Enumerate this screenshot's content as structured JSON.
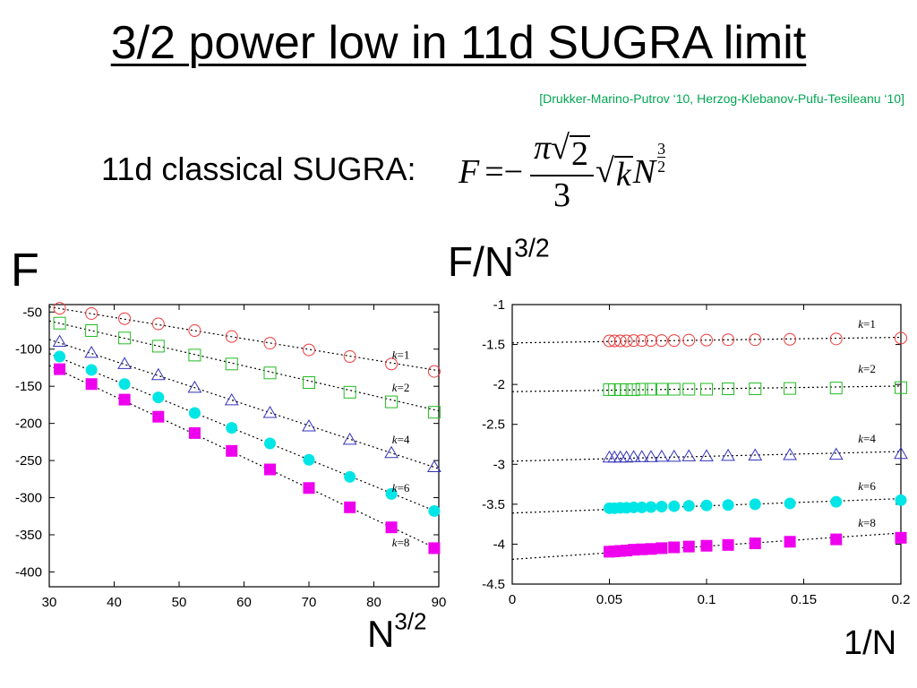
{
  "title": "3/2 power low in 11d SUGRA limit",
  "citation": "[Drukker-Marino-Putrov ‘10, Herzog-Klebanov-Pufu-Tesileanu ‘10]",
  "formula": {
    "label": "11d classical SUGRA:",
    "lhs": "F",
    "eq": "=−",
    "frac_num_pi": "π",
    "frac_num_root": "2",
    "frac_den": "3",
    "root_k": "k",
    "var": "N",
    "exp_num": "3",
    "exp_den": "2"
  },
  "left_ylabel": "F",
  "left_xlabel": "N",
  "right_ylabel": "F/N",
  "right_xlabel": "1/N",
  "exp": "3/2",
  "colors": {
    "k1": "#ee3b3b",
    "k2": "#22bb22",
    "k4": "#3333bb",
    "k6": "#00e5e5",
    "k8": "#ee00ee"
  },
  "chart_data": [
    {
      "type": "scatter",
      "xlabel": "N3/2",
      "ylabel": "F",
      "xlim": [
        30,
        90
      ],
      "ylim": [
        -420,
        -40
      ],
      "xticks": [
        30,
        40,
        50,
        60,
        70,
        80,
        90
      ],
      "yticks": [
        -50,
        -100,
        -150,
        -200,
        -250,
        -300,
        -350,
        -400
      ],
      "grid": false,
      "series": [
        {
          "name": "k=1",
          "marker": "circle-open",
          "x": [
            31.6,
            36.5,
            41.6,
            46.8,
            52.4,
            58.1,
            64.0,
            70.0,
            76.3,
            82.7,
            89.3
          ],
          "y": [
            -45,
            -52,
            -59,
            -66,
            -75,
            -83,
            -92,
            -101,
            -110,
            -120,
            -130
          ],
          "fit": [
            [
              30,
              -43
            ],
            [
              90,
              -129
            ]
          ]
        },
        {
          "name": "k=2",
          "marker": "square-open",
          "x": [
            31.6,
            36.5,
            41.6,
            46.8,
            52.4,
            58.1,
            64.0,
            70.0,
            76.3,
            82.7,
            89.3
          ],
          "y": [
            -65,
            -75,
            -85,
            -96,
            -108,
            -120,
            -132,
            -145,
            -158,
            -171,
            -185
          ],
          "fit": [
            [
              30,
              -62
            ],
            [
              90,
              -183
            ]
          ]
        },
        {
          "name": "k=4",
          "marker": "triangle-open",
          "x": [
            31.6,
            36.5,
            41.6,
            46.8,
            52.4,
            58.1,
            64.0,
            70.0,
            76.3,
            82.7,
            89.3
          ],
          "y": [
            -90,
            -105,
            -120,
            -135,
            -152,
            -169,
            -186,
            -204,
            -222,
            -240,
            -259
          ],
          "fit": [
            [
              30,
              -87
            ],
            [
              90,
              -261
            ]
          ]
        },
        {
          "name": "k=6",
          "marker": "circle-filled",
          "x": [
            31.6,
            36.5,
            41.6,
            46.8,
            52.4,
            58.1,
            64.0,
            70.0,
            76.3,
            82.7,
            89.3
          ],
          "y": [
            -110,
            -128,
            -147,
            -165,
            -186,
            -206,
            -227,
            -249,
            -272,
            -295,
            -318
          ],
          "fit": [
            [
              30,
              -106
            ],
            [
              90,
              -320
            ]
          ]
        },
        {
          "name": "k=8",
          "marker": "square-filled",
          "x": [
            31.6,
            36.5,
            41.6,
            46.8,
            52.4,
            58.1,
            64.0,
            70.0,
            76.3,
            82.7,
            89.3
          ],
          "y": [
            -127,
            -147,
            -168,
            -191,
            -213,
            -237,
            -262,
            -287,
            -313,
            -340,
            -368
          ],
          "fit": [
            [
              30,
              -122
            ],
            [
              90,
              -370
            ]
          ]
        }
      ],
      "annotations": [
        {
          "text": "k=1",
          "x": 82.8,
          "y": -113
        },
        {
          "text": "k=2",
          "x": 82.8,
          "y": -157
        },
        {
          "text": "k=4",
          "x": 82.8,
          "y": -227
        },
        {
          "text": "k=6",
          "x": 82.8,
          "y": -292
        },
        {
          "text": "k=8",
          "x": 82.8,
          "y": -366
        }
      ]
    },
    {
      "type": "scatter",
      "xlabel": "1/N",
      "ylabel": "F/N3/2",
      "xlim": [
        0,
        0.2
      ],
      "ylim": [
        -4.5,
        -1
      ],
      "xticks": [
        0,
        0.05,
        0.1,
        0.15,
        0.2
      ],
      "xticklabels": [
        "0",
        "0.05",
        "0.1",
        "0.15",
        "0.2"
      ],
      "yticks": [
        -1,
        -1.5,
        -2,
        -2.5,
        -3,
        -3.5,
        -4,
        -4.5
      ],
      "grid": false,
      "series": [
        {
          "name": "k=1",
          "marker": "circle-open",
          "x": [
            0.2,
            0.1667,
            0.1429,
            0.125,
            0.1111,
            0.1,
            0.0909,
            0.0833,
            0.0769,
            0.0714,
            0.0667,
            0.0625,
            0.0588,
            0.0556,
            0.0526,
            0.05
          ],
          "y": [
            -1.42,
            -1.43,
            -1.435,
            -1.44,
            -1.44,
            -1.445,
            -1.445,
            -1.45,
            -1.45,
            -1.45,
            -1.45,
            -1.45,
            -1.455,
            -1.455,
            -1.455,
            -1.455
          ],
          "fit": [
            [
              0,
              -1.48
            ],
            [
              0.2,
              -1.41
            ]
          ]
        },
        {
          "name": "k=2",
          "marker": "square-open",
          "x": [
            0.2,
            0.1667,
            0.1429,
            0.125,
            0.1111,
            0.1,
            0.0909,
            0.0833,
            0.0769,
            0.0714,
            0.0667,
            0.0625,
            0.0588,
            0.0556,
            0.0526,
            0.05
          ],
          "y": [
            -2.04,
            -2.045,
            -2.05,
            -2.055,
            -2.055,
            -2.06,
            -2.06,
            -2.06,
            -2.06,
            -2.06,
            -2.06,
            -2.065,
            -2.065,
            -2.065,
            -2.065,
            -2.065
          ],
          "fit": [
            [
              0,
              -2.09
            ],
            [
              0.2,
              -2.02
            ]
          ]
        },
        {
          "name": "k=4",
          "marker": "triangle-open",
          "x": [
            0.2,
            0.1667,
            0.1429,
            0.125,
            0.1111,
            0.1,
            0.0909,
            0.0833,
            0.0769,
            0.0714,
            0.0667,
            0.0625,
            0.0588,
            0.0556,
            0.0526,
            0.05
          ],
          "y": [
            -2.87,
            -2.88,
            -2.885,
            -2.89,
            -2.895,
            -2.9,
            -2.9,
            -2.905,
            -2.905,
            -2.91,
            -2.91,
            -2.91,
            -2.915,
            -2.915,
            -2.915,
            -2.915
          ],
          "fit": [
            [
              0,
              -2.96
            ],
            [
              0.2,
              -2.84
            ]
          ]
        },
        {
          "name": "k=6",
          "marker": "circle-filled",
          "x": [
            0.2,
            0.1667,
            0.1429,
            0.125,
            0.1111,
            0.1,
            0.0909,
            0.0833,
            0.0769,
            0.0714,
            0.0667,
            0.0625,
            0.0588,
            0.0556,
            0.0526,
            0.05
          ],
          "y": [
            -3.45,
            -3.47,
            -3.49,
            -3.5,
            -3.51,
            -3.515,
            -3.52,
            -3.525,
            -3.53,
            -3.535,
            -3.54,
            -3.54,
            -3.545,
            -3.545,
            -3.55,
            -3.55
          ],
          "fit": [
            [
              0,
              -3.61
            ],
            [
              0.2,
              -3.43
            ]
          ]
        },
        {
          "name": "k=8",
          "marker": "square-filled",
          "x": [
            0.2,
            0.1667,
            0.1429,
            0.125,
            0.1111,
            0.1,
            0.0909,
            0.0833,
            0.0769,
            0.0714,
            0.0667,
            0.0625,
            0.0588,
            0.0556,
            0.0526,
            0.05
          ],
          "y": [
            -3.92,
            -3.94,
            -3.97,
            -3.99,
            -4.01,
            -4.02,
            -4.03,
            -4.04,
            -4.05,
            -4.06,
            -4.065,
            -4.07,
            -4.08,
            -4.085,
            -4.09,
            -4.095
          ],
          "fit": [
            [
              0,
              -4.19
            ],
            [
              0.2,
              -3.86
            ]
          ]
        }
      ],
      "annotations": [
        {
          "text": "k=1",
          "x": 0.178,
          "y": -1.29
        },
        {
          "text": "k=2",
          "x": 0.178,
          "y": -1.85
        },
        {
          "text": "k=4",
          "x": 0.178,
          "y": -2.73
        },
        {
          "text": "k=6",
          "x": 0.178,
          "y": -3.32
        },
        {
          "text": "k=8",
          "x": 0.178,
          "y": -3.78
        }
      ]
    }
  ]
}
